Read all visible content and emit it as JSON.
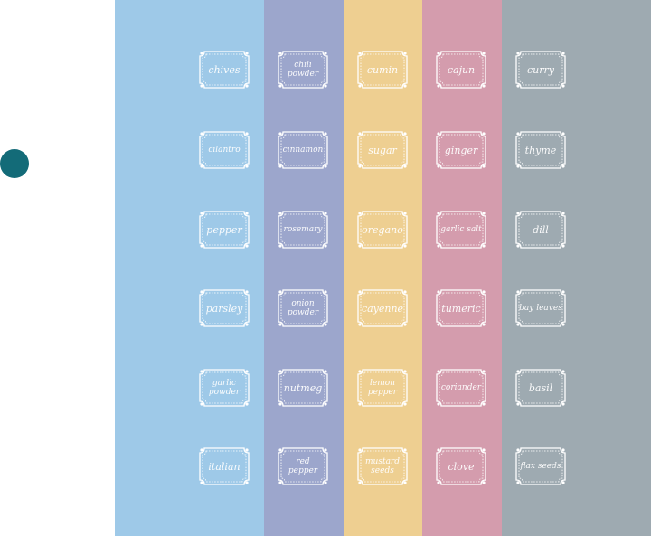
{
  "colors": {
    "columns": [
      "#9ec9e8",
      "#9ca6cc",
      "#eecf91",
      "#d49cad",
      "#9eaab1"
    ],
    "dot": "#136b78",
    "label": "#ffffff"
  },
  "columns": [
    {
      "labels": [
        "chives",
        "cilantro",
        "pepper",
        "parsley",
        "garlic powder",
        "italian"
      ]
    },
    {
      "labels": [
        "chili powder",
        "cinnamon",
        "rosemary",
        "onion powder",
        "nutmeg",
        "red pepper"
      ]
    },
    {
      "labels": [
        "cumin",
        "sugar",
        "oregano",
        "cayenne",
        "lemon pepper",
        "mustard seeds"
      ]
    },
    {
      "labels": [
        "cajun",
        "ginger",
        "garlic salt",
        "tumeric",
        "coriander",
        "clove"
      ]
    },
    {
      "labels": [
        "curry",
        "thyme",
        "dill",
        "bay leaves",
        "basil",
        "flax seeds"
      ]
    }
  ]
}
